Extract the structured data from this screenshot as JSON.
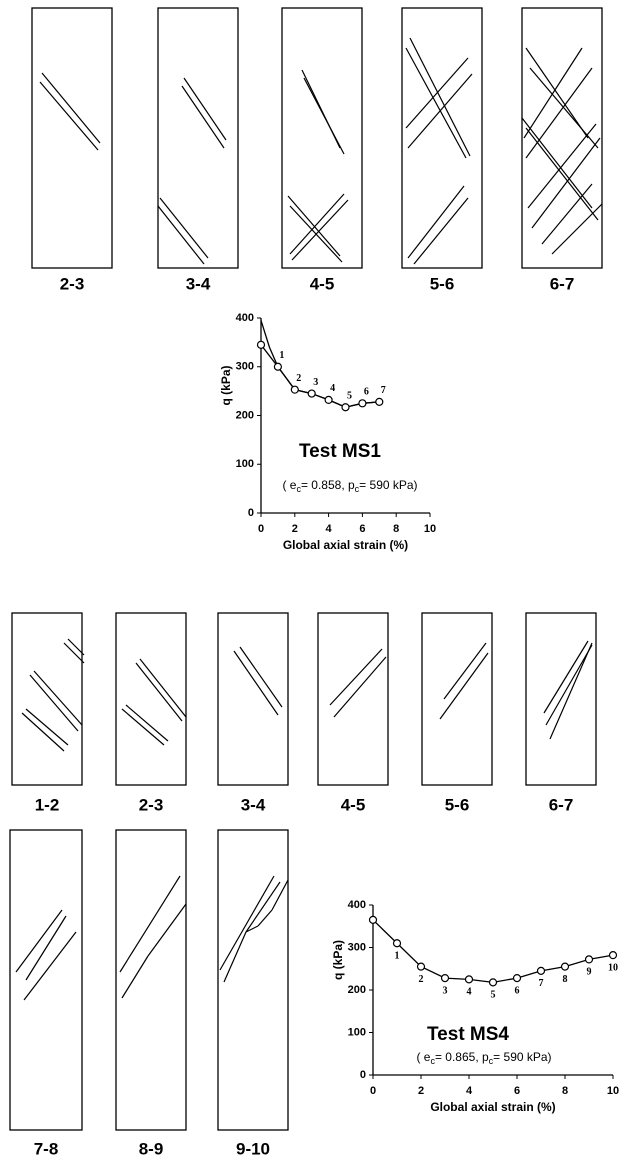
{
  "panels_ms1": [
    "2-3",
    "3-4",
    "4-5",
    "5-6",
    "6-7"
  ],
  "panels_ms4": [
    "1-2",
    "2-3",
    "3-4",
    "4-5",
    "5-6",
    "6-7",
    "7-8",
    "8-9",
    "9-10"
  ],
  "chart_data": [
    {
      "type": "line",
      "title": "Test MS1",
      "annotation": [
        "( e",
        "c",
        "= 0.858, p",
        "c",
        "= 590 kPa)"
      ],
      "xlabel": "Global axial strain (%)",
      "ylabel": "q (kPa)",
      "xlim": [
        0,
        10
      ],
      "ylim": [
        0,
        400
      ],
      "xticks": [
        0,
        2,
        4,
        6,
        8,
        10
      ],
      "yticks": [
        0,
        100,
        200,
        300,
        400
      ],
      "series": [
        {
          "color": "#000000",
          "x": [
            0,
            0.5,
            1,
            2,
            3,
            4,
            5,
            6,
            7
          ],
          "values": [
            395,
            340,
            300,
            253,
            245,
            232,
            217,
            225,
            228
          ]
        },
        {
          "color": "#000000",
          "marker": "circle",
          "x": [
            0,
            1,
            2,
            3,
            4,
            5,
            6,
            7
          ],
          "values": [
            345,
            300,
            253,
            245,
            232,
            217,
            225,
            228
          ],
          "point_labels": [
            null,
            "1",
            "2",
            "3",
            "4",
            "5",
            "6",
            "7"
          ]
        }
      ]
    },
    {
      "type": "line",
      "title": "Test MS4",
      "annotation": [
        "( e",
        "c",
        "= 0.865,  p",
        "c",
        "= 590 kPa)"
      ],
      "xlabel": "Global axial strain (%)",
      "ylabel": "q (kPa)",
      "xlim": [
        0,
        10
      ],
      "ylim": [
        0,
        400
      ],
      "xticks": [
        0,
        2,
        4,
        6,
        8,
        10
      ],
      "yticks": [
        0,
        100,
        200,
        300,
        400
      ],
      "series": [
        {
          "color": "#000000",
          "marker": "circle",
          "x": [
            0,
            1,
            2,
            3,
            4,
            5,
            6,
            7,
            8,
            9,
            10
          ],
          "values": [
            365,
            310,
            255,
            228,
            225,
            218,
            228,
            245,
            255,
            272,
            282
          ],
          "point_labels": [
            null,
            "1",
            "2",
            "3",
            "4",
            "5",
            "6",
            "7",
            "8",
            "9",
            "10"
          ]
        }
      ]
    }
  ]
}
